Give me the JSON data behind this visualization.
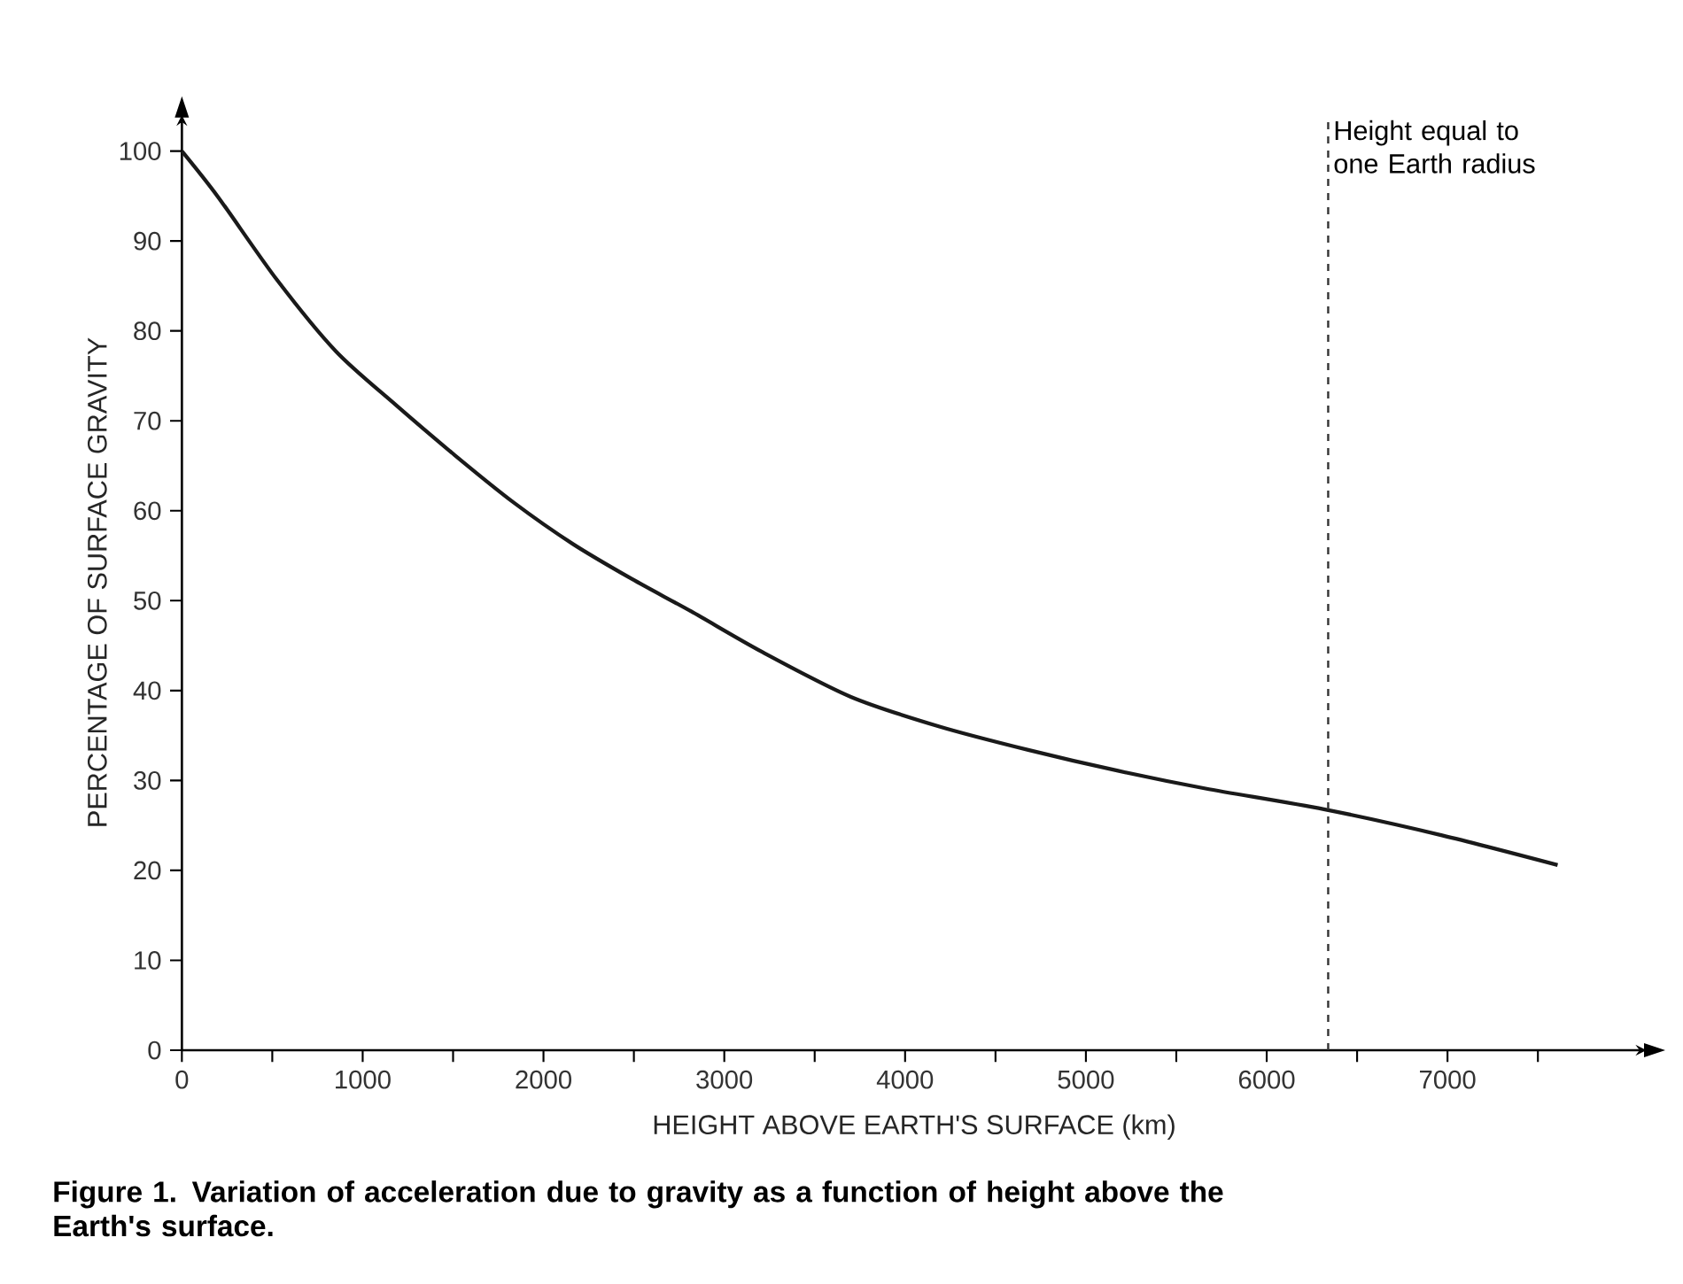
{
  "chart_data": {
    "type": "line",
    "title": "**Figure 1. Variation of acceleration due to gravity as a function of height above the Earth's surface.**",
    "xlabel": "HEIGHT ABOVE EARTH'S SURFACE (km)",
    "ylabel": "PERCENTAGE OF SURFACE GRAVITY",
    "xlim": [
      0,
      8100
    ],
    "ylim": [
      0,
      104
    ],
    "xticks": [
      0,
      {
        "value": 500,
        "label": null
      },
      1000,
      {
        "value": 1500,
        "label": null
      },
      2000,
      {
        "value": 2500,
        "label": null
      },
      3000,
      {
        "value": 3500,
        "label": null
      },
      4000,
      {
        "value": 4500,
        "label": null
      },
      5000,
      {
        "value": 5500,
        "label": null
      },
      6000,
      {
        "value": 6500,
        "label": null
      },
      7000,
      {
        "value": 7500,
        "label": null
      }
    ],
    "yticks": [
      0,
      10,
      20,
      30,
      40,
      50,
      60,
      70,
      80,
      90,
      100
    ],
    "series": [
      {
        "color": "#1a1a1a",
        "x": [
          0,
          200,
          525,
          853,
          1181,
          1508,
          1836,
          2163,
          2490,
          2817,
          3209,
          3700,
          4190,
          4681,
          5172,
          5662,
          6316,
          6970,
          7609
        ],
        "values": [
          100,
          94.9,
          85.7,
          77.7,
          71.8,
          66.2,
          60.9,
          56.3,
          52.4,
          48.8,
          44.3,
          39.3,
          36.0,
          33.4,
          31.1,
          29.1,
          26.8,
          23.9,
          20.6
        ]
      }
    ],
    "ref_lines": [
      {
        "axis": "x",
        "value": 6340,
        "label": "Height equal to one Earth radius",
        "color": "#333333",
        "line_style": "dashed"
      }
    ]
  }
}
